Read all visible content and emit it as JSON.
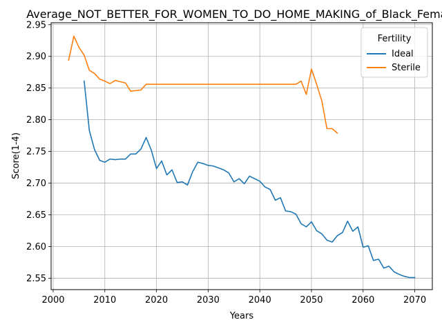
{
  "chart_data": {
    "type": "line",
    "title": "Average_NOT_BETTER_FOR_WOMEN_TO_DO_HOME_MAKING_of_Black_Female",
    "xlabel": "Years",
    "ylabel": "Score(1-4)",
    "xlim": [
      1999.6,
      2073.4
    ],
    "ylim": [
      2.532,
      2.953
    ],
    "xticks": [
      2000,
      2010,
      2020,
      2030,
      2040,
      2050,
      2060,
      2070
    ],
    "yticks": [
      2.55,
      2.6,
      2.65,
      2.7,
      2.75,
      2.8,
      2.85,
      2.9,
      2.95
    ],
    "ytick_labels": [
      "2.55",
      "2.60",
      "2.65",
      "2.70",
      "2.75",
      "2.80",
      "2.85",
      "2.90",
      "2.95"
    ],
    "grid": true,
    "legend": {
      "title": "Fertility",
      "placement": "top-right"
    },
    "series": [
      {
        "name": "Ideal",
        "color": "#1f77b4",
        "x": [
          2006,
          2007,
          2008,
          2009,
          2010,
          2011,
          2012,
          2013,
          2014,
          2015,
          2016,
          2017,
          2018,
          2019,
          2020,
          2021,
          2022,
          2023,
          2024,
          2025,
          2026,
          2027,
          2028,
          2029,
          2030,
          2031,
          2032,
          2033,
          2034,
          2035,
          2036,
          2037,
          2038,
          2039,
          2040,
          2041,
          2042,
          2043,
          2044,
          2045,
          2046,
          2047,
          2048,
          2049,
          2050,
          2051,
          2052,
          2053,
          2054,
          2055,
          2056,
          2057,
          2058,
          2059,
          2060,
          2061,
          2062,
          2063,
          2064,
          2065,
          2066,
          2067,
          2068,
          2069,
          2070
        ],
        "y": [
          2.861,
          2.783,
          2.753,
          2.736,
          2.733,
          2.738,
          2.737,
          2.738,
          2.738,
          2.746,
          2.746,
          2.754,
          2.772,
          2.752,
          2.723,
          2.735,
          2.713,
          2.721,
          2.701,
          2.702,
          2.697,
          2.718,
          2.733,
          2.731,
          2.728,
          2.727,
          2.724,
          2.721,
          2.716,
          2.702,
          2.707,
          2.699,
          2.711,
          2.707,
          2.703,
          2.694,
          2.69,
          2.673,
          2.677,
          2.656,
          2.655,
          2.651,
          2.636,
          2.631,
          2.639,
          2.625,
          2.62,
          2.61,
          2.607,
          2.617,
          2.622,
          2.64,
          2.624,
          2.631,
          2.599,
          2.601,
          2.578,
          2.58,
          2.566,
          2.569,
          2.56,
          2.556,
          2.553,
          2.551,
          2.551
        ]
      },
      {
        "name": "Sterile",
        "color": "#ff7f0e",
        "x": [
          2003,
          2004,
          2005,
          2006,
          2007,
          2008,
          2009,
          2010,
          2011,
          2012,
          2013,
          2014,
          2015,
          2016,
          2017,
          2018,
          2019,
          2020,
          2021,
          2022,
          2023,
          2024,
          2025,
          2026,
          2027,
          2028,
          2029,
          2030,
          2031,
          2032,
          2033,
          2034,
          2035,
          2036,
          2037,
          2038,
          2039,
          2040,
          2041,
          2042,
          2043,
          2044,
          2045,
          2046,
          2047,
          2048,
          2049,
          2050,
          2051,
          2052,
          2053,
          2054,
          2055
        ],
        "y": [
          2.894,
          2.932,
          2.914,
          2.902,
          2.878,
          2.873,
          2.864,
          2.861,
          2.857,
          2.862,
          2.86,
          2.858,
          2.845,
          2.846,
          2.847,
          2.856,
          2.856,
          2.856,
          2.856,
          2.856,
          2.856,
          2.856,
          2.856,
          2.856,
          2.856,
          2.856,
          2.856,
          2.856,
          2.856,
          2.856,
          2.856,
          2.856,
          2.856,
          2.856,
          2.856,
          2.856,
          2.856,
          2.856,
          2.856,
          2.856,
          2.856,
          2.856,
          2.856,
          2.856,
          2.856,
          2.861,
          2.84,
          2.88,
          2.856,
          2.83,
          2.786,
          2.786,
          2.779
        ]
      }
    ]
  }
}
